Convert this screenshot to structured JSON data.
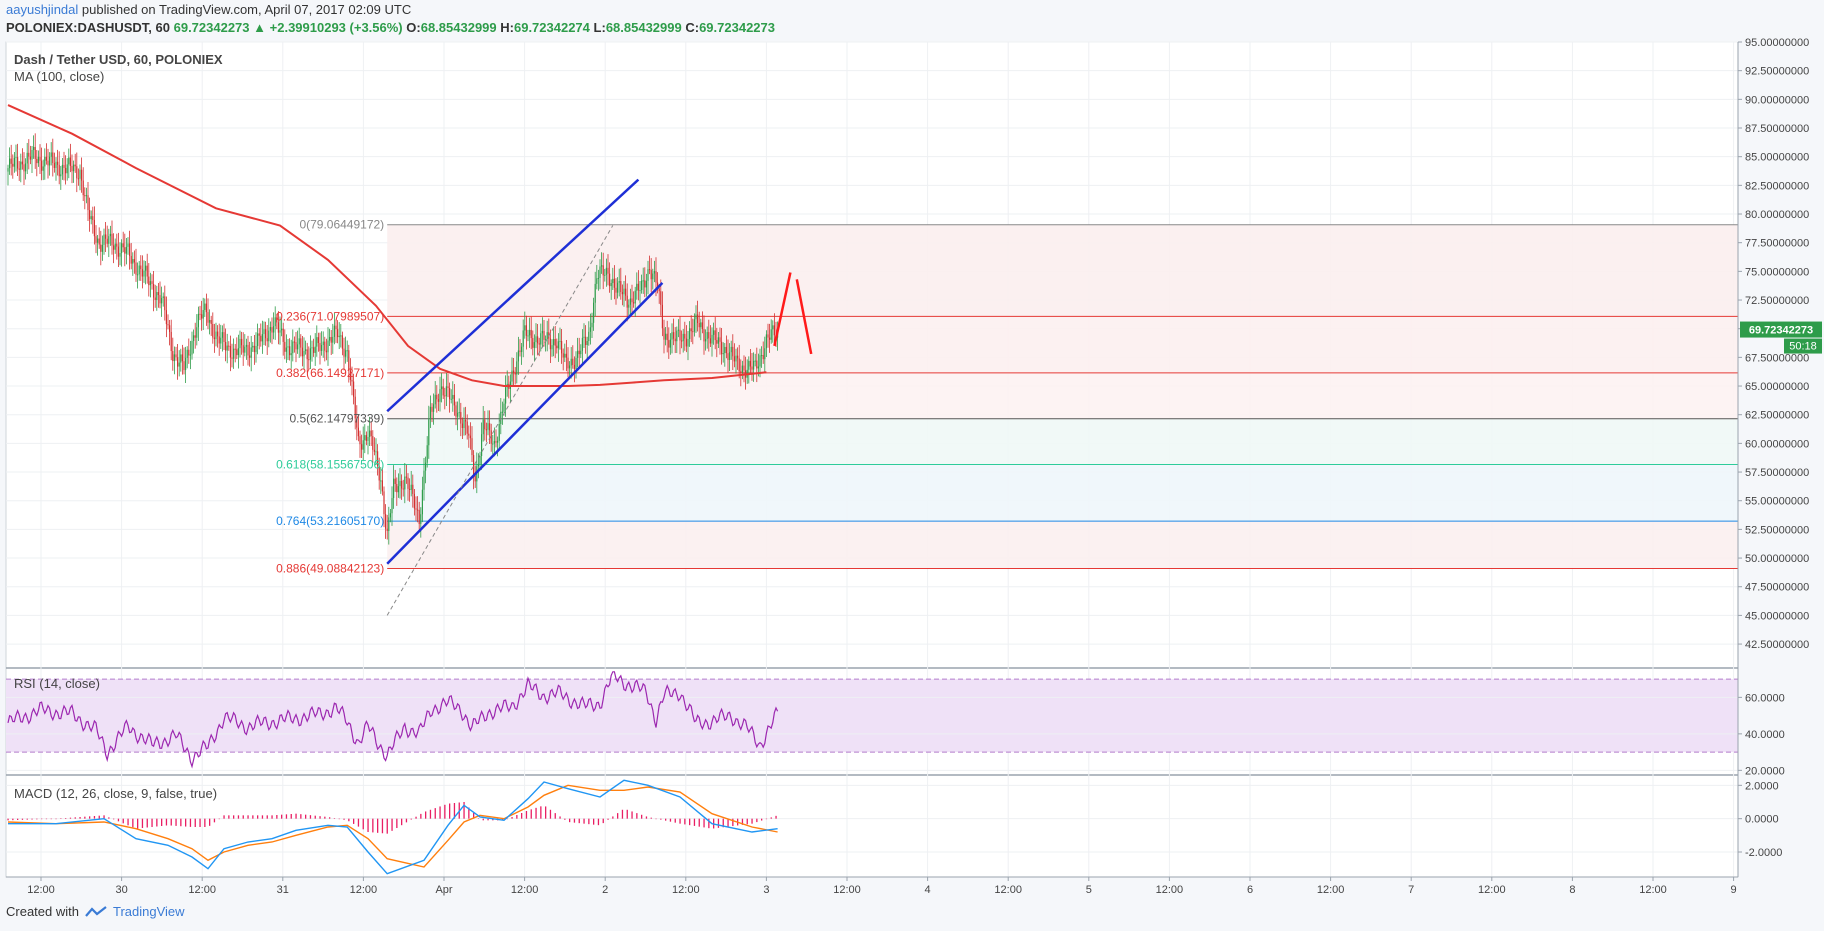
{
  "header": {
    "author": "aayushjindal",
    "published_text": "published on TradingView.com, April 07, 2017 02:09 UTC",
    "symbol_line": "POLONIEX:DASHUSDT, 60",
    "last_price": "69.72342273",
    "change": "▲ +2.39910293 (+3.56%)",
    "open_label": "O:",
    "open": "68.85432999",
    "high_label": "H:",
    "high": "69.72342274",
    "low_label": "L:",
    "low": "68.85432999",
    "close_label": "C:",
    "close": "69.72342273"
  },
  "main_legend": {
    "title": "Dash / Tether USD, 60, POLONIEX",
    "ma": "MA (100, close)"
  },
  "rsi_legend": "RSI (14, close)",
  "macd_legend": "MACD (12, 26, close, 9, false, true)",
  "price_badge": "69.72342273",
  "countdown_badge": "50:18",
  "footer": {
    "created_with": "Created with",
    "brand": "TradingView"
  },
  "colors": {
    "up": "#2e9c4a",
    "down": "#d32f2f",
    "ma": "#e53935",
    "channel": "#1e2fd6",
    "rsi": "#9c27b0",
    "macd": "#2196f3",
    "signal": "#ff7f0e",
    "hist": "#e91e63"
  },
  "chart_data": [
    {
      "type": "candlestick",
      "title": "Dash / Tether USD, 60, POLONIEX",
      "x_ticks": [
        "12:00",
        "30",
        "12:00",
        "31",
        "12:00",
        "Apr",
        "12:00",
        "2",
        "12:00",
        "3",
        "12:00",
        "4",
        "12:00",
        "5",
        "12:00",
        "6",
        "12:00",
        "7",
        "12:00",
        "8",
        "12:00",
        "9"
      ],
      "y_ticks": [
        "95.00000000",
        "92.50000000",
        "90.00000000",
        "87.50000000",
        "85.00000000",
        "82.50000000",
        "80.00000000",
        "77.50000000",
        "75.00000000",
        "72.50000000",
        "70.00000000",
        "67.50000000",
        "65.00000000",
        "62.50000000",
        "60.00000000",
        "57.50000000",
        "55.00000000",
        "52.50000000",
        "50.00000000",
        "47.50000000",
        "45.00000000",
        "42.50000000"
      ],
      "ylim": [
        40.5,
        95.0
      ],
      "anchors": [
        [
          0,
          84.0
        ],
        [
          16,
          85.0
        ],
        [
          25,
          84.5
        ],
        [
          36,
          84.0
        ],
        [
          45,
          83.8
        ],
        [
          50,
          80.0
        ],
        [
          57,
          77.5
        ],
        [
          66,
          77.5
        ],
        [
          75,
          76.5
        ],
        [
          86,
          74.5
        ],
        [
          96,
          72.5
        ],
        [
          103,
          68.0
        ],
        [
          110,
          66.5
        ],
        [
          118,
          70.5
        ],
        [
          124,
          71.5
        ],
        [
          131,
          69.0
        ],
        [
          142,
          68.0
        ],
        [
          155,
          68.5
        ],
        [
          166,
          70.5
        ],
        [
          174,
          68.5
        ],
        [
          190,
          68.0
        ],
        [
          206,
          69.5
        ],
        [
          212,
          68.0
        ],
        [
          219,
          60.0
        ],
        [
          225,
          61.0
        ],
        [
          233,
          57.0
        ],
        [
          237,
          52.0
        ],
        [
          241,
          56.0
        ],
        [
          248,
          57.0
        ],
        [
          257,
          53.5
        ],
        [
          264,
          62.5
        ],
        [
          270,
          65.0
        ],
        [
          281,
          63.0
        ],
        [
          288,
          60.5
        ],
        [
          292,
          57.0
        ],
        [
          297,
          61.5
        ],
        [
          304,
          60.0
        ],
        [
          310,
          63.5
        ],
        [
          317,
          67.0
        ],
        [
          323,
          69.5
        ],
        [
          334,
          69.0
        ],
        [
          343,
          69.0
        ],
        [
          348,
          67.0
        ],
        [
          356,
          67.5
        ],
        [
          363,
          69.5
        ],
        [
          368,
          74.5
        ],
        [
          375,
          75.0
        ],
        [
          380,
          73.5
        ],
        [
          389,
          72.5
        ],
        [
          396,
          73.5
        ],
        [
          401,
          75.5
        ],
        [
          406,
          73.5
        ],
        [
          410,
          69.5
        ],
        [
          417,
          69.0
        ],
        [
          425,
          69.5
        ],
        [
          431,
          70.5
        ],
        [
          440,
          69.0
        ],
        [
          447,
          68.5
        ],
        [
          455,
          67.0
        ],
        [
          462,
          66.5
        ],
        [
          467,
          66.5
        ],
        [
          474,
          69.0
        ],
        [
          481,
          69.7
        ]
      ],
      "ma_points": [
        [
          0,
          89.5
        ],
        [
          40,
          87.0
        ],
        [
          80,
          84.0
        ],
        [
          130,
          80.5
        ],
        [
          170,
          79.0
        ],
        [
          200,
          76.0
        ],
        [
          230,
          72.0
        ],
        [
          250,
          68.5
        ],
        [
          270,
          66.5
        ],
        [
          290,
          65.5
        ],
        [
          310,
          65.0
        ],
        [
          330,
          65.0
        ],
        [
          350,
          65.0
        ],
        [
          370,
          65.1
        ],
        [
          390,
          65.3
        ],
        [
          410,
          65.5
        ],
        [
          440,
          65.7
        ],
        [
          460,
          66.0
        ],
        [
          474,
          66.2
        ]
      ],
      "fib_levels": [
        {
          "label": "0(79.06449172)",
          "value": 79.06449172,
          "color": "#888888"
        },
        {
          "label": "0.236(71.07989507)",
          "value": 71.07989507,
          "color": "#e53935"
        },
        {
          "label": "0.382(66.14927171)",
          "value": 66.14927171,
          "color": "#e53935"
        },
        {
          "label": "0.5(62.14797339)",
          "value": 62.14797339,
          "color": "#555555"
        },
        {
          "label": "0.618(58.15567506)",
          "value": 58.15567506,
          "color": "#2ecc9a"
        },
        {
          "label": "0.764(53.21605170)",
          "value": 53.2160517,
          "color": "#1e88e5"
        },
        {
          "label": "0.886(49.08842123)",
          "value": 49.08842123,
          "color": "#e53935"
        }
      ],
      "fib_start_time": 237,
      "channel_upper": [
        [
          237,
          62.8
        ],
        [
          394,
          83.0
        ]
      ],
      "channel_lower": [
        [
          237,
          49.5
        ],
        [
          409,
          74.0
        ]
      ],
      "trend_dashed": [
        [
          237,
          45.0
        ],
        [
          378,
          79.0
        ]
      ],
      "projection": [
        [
          [
            479,
            68.5
          ],
          [
            489,
            74.9
          ]
        ],
        [
          [
            493,
            74.3
          ],
          [
            502,
            67.8
          ]
        ]
      ]
    },
    {
      "type": "line",
      "title": "RSI (14, close)",
      "y_ticks": [
        "60.0000",
        "40.0000",
        "20.0000"
      ],
      "ylim": [
        18,
        75
      ],
      "bands": [
        30,
        70
      ],
      "points": [
        [
          0,
          46
        ],
        [
          20,
          53
        ],
        [
          40,
          51
        ],
        [
          55,
          42
        ],
        [
          62,
          30
        ],
        [
          75,
          44
        ],
        [
          90,
          34
        ],
        [
          105,
          39
        ],
        [
          115,
          27
        ],
        [
          125,
          33
        ],
        [
          135,
          49
        ],
        [
          150,
          44
        ],
        [
          160,
          46
        ],
        [
          175,
          48
        ],
        [
          190,
          50
        ],
        [
          205,
          54
        ],
        [
          212,
          47
        ],
        [
          219,
          35
        ],
        [
          225,
          44
        ],
        [
          233,
          33
        ],
        [
          237,
          28
        ],
        [
          248,
          44
        ],
        [
          257,
          40
        ],
        [
          265,
          54
        ],
        [
          275,
          57
        ],
        [
          283,
          54
        ],
        [
          290,
          43
        ],
        [
          300,
          52
        ],
        [
          315,
          55
        ],
        [
          325,
          66
        ],
        [
          335,
          61
        ],
        [
          345,
          62
        ],
        [
          360,
          55
        ],
        [
          370,
          57
        ],
        [
          378,
          72
        ],
        [
          390,
          66
        ],
        [
          399,
          63
        ],
        [
          405,
          48
        ],
        [
          410,
          61
        ],
        [
          420,
          63
        ],
        [
          430,
          46
        ],
        [
          440,
          47
        ],
        [
          452,
          50
        ],
        [
          462,
          43
        ],
        [
          470,
          34
        ],
        [
          481,
          51
        ]
      ]
    },
    {
      "type": "line",
      "title": "MACD (12, 26, close, 9, false, true)",
      "y_ticks": [
        "2.0000",
        "0.0000",
        "-2.0000"
      ],
      "ylim": [
        -3.5,
        2.5
      ],
      "macd": [
        [
          0,
          -0.3
        ],
        [
          30,
          -0.3
        ],
        [
          60,
          0.0
        ],
        [
          80,
          -1.2
        ],
        [
          100,
          -1.6
        ],
        [
          115,
          -2.3
        ],
        [
          125,
          -3.0
        ],
        [
          135,
          -1.8
        ],
        [
          150,
          -1.4
        ],
        [
          165,
          -1.2
        ],
        [
          180,
          -0.7
        ],
        [
          200,
          -0.4
        ],
        [
          212,
          -0.5
        ],
        [
          225,
          -2.0
        ],
        [
          237,
          -3.3
        ],
        [
          260,
          -2.5
        ],
        [
          275,
          -0.4
        ],
        [
          285,
          0.8
        ],
        [
          295,
          0.1
        ],
        [
          310,
          -0.1
        ],
        [
          325,
          1.2
        ],
        [
          335,
          2.2
        ],
        [
          350,
          1.8
        ],
        [
          370,
          1.3
        ],
        [
          385,
          2.3
        ],
        [
          400,
          2.0
        ],
        [
          420,
          1.3
        ],
        [
          440,
          -0.3
        ],
        [
          465,
          -0.8
        ],
        [
          481,
          -0.6
        ]
      ],
      "signal": [
        [
          0,
          -0.2
        ],
        [
          30,
          -0.3
        ],
        [
          60,
          -0.2
        ],
        [
          80,
          -0.6
        ],
        [
          100,
          -1.2
        ],
        [
          115,
          -1.8
        ],
        [
          125,
          -2.5
        ],
        [
          135,
          -2.0
        ],
        [
          150,
          -1.6
        ],
        [
          165,
          -1.4
        ],
        [
          180,
          -1.0
        ],
        [
          200,
          -0.5
        ],
        [
          212,
          -0.4
        ],
        [
          225,
          -1.2
        ],
        [
          237,
          -2.4
        ],
        [
          260,
          -2.9
        ],
        [
          275,
          -1.3
        ],
        [
          285,
          -0.2
        ],
        [
          295,
          0.2
        ],
        [
          310,
          0.0
        ],
        [
          325,
          0.7
        ],
        [
          335,
          1.4
        ],
        [
          350,
          2.0
        ],
        [
          370,
          1.7
        ],
        [
          385,
          1.7
        ],
        [
          400,
          1.9
        ],
        [
          420,
          1.6
        ],
        [
          440,
          0.3
        ],
        [
          465,
          -0.5
        ],
        [
          481,
          -0.8
        ]
      ]
    }
  ]
}
